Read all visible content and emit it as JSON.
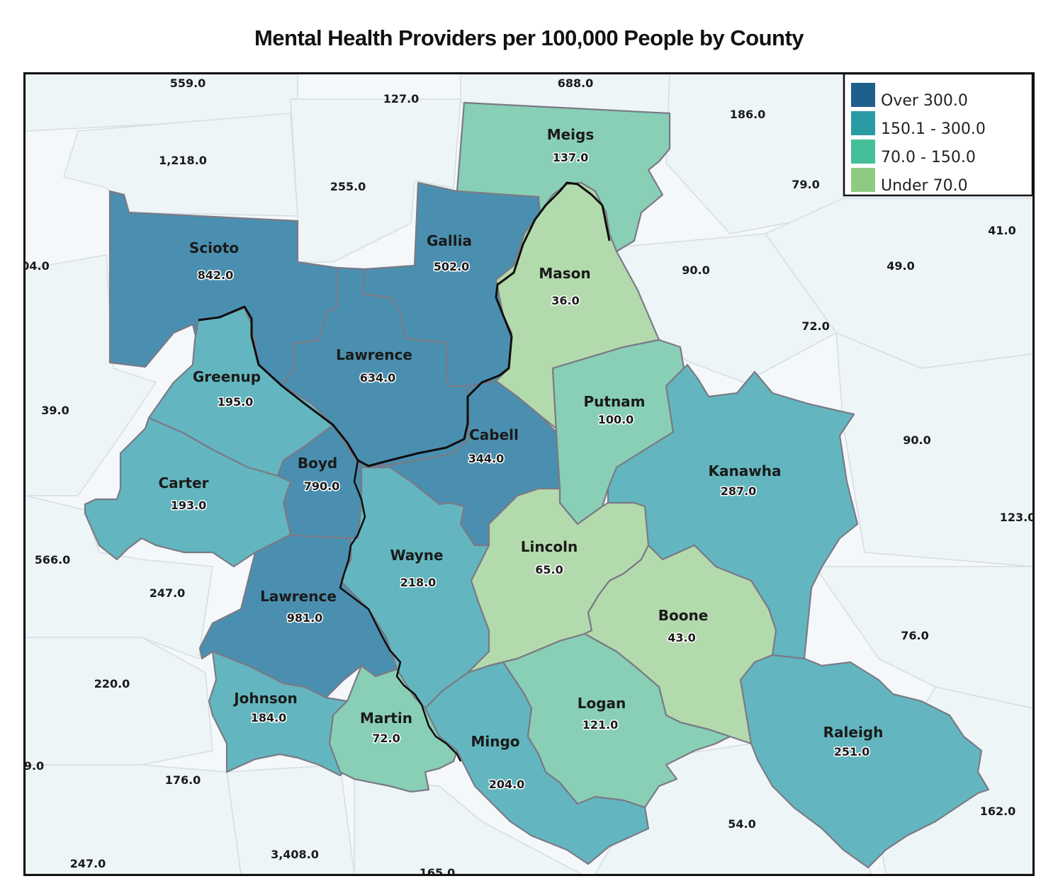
{
  "title": "Mental Health Providers per 100,000 People by County",
  "legend": {
    "items": [
      {
        "label": "Over 300.0",
        "color": "#1f5f8b"
      },
      {
        "label": "150.1 - 300.0",
        "color": "#2a9aa4"
      },
      {
        "label": "70.0 - 150.0",
        "color": "#45bf99"
      },
      {
        "label": "Under 70.0",
        "color": "#8ecb82"
      }
    ]
  },
  "fill_colors": {
    "over_300": "#4a8fb0",
    "c150_300": "#63b6bf",
    "c70_150": "#88cfb6",
    "under_70": "#b3daac"
  },
  "counties": [
    {
      "id": "meigs",
      "name": "Meigs",
      "value": "137.0",
      "class": "c70_150"
    },
    {
      "id": "scioto",
      "name": "Scioto",
      "value": "842.0",
      "class": "over_300"
    },
    {
      "id": "gallia",
      "name": "Gallia",
      "value": "502.0",
      "class": "over_300"
    },
    {
      "id": "mason",
      "name": "Mason",
      "value": "36.0",
      "class": "under_70"
    },
    {
      "id": "lawrence-oh",
      "name": "Lawrence",
      "value": "634.0",
      "class": "over_300"
    },
    {
      "id": "greenup",
      "name": "Greenup",
      "value": "195.0",
      "class": "c150_300"
    },
    {
      "id": "putnam",
      "name": "Putnam",
      "value": "100.0",
      "class": "c70_150"
    },
    {
      "id": "cabell",
      "name": "Cabell",
      "value": "344.0",
      "class": "over_300"
    },
    {
      "id": "boyd",
      "name": "Boyd",
      "value": "790.0",
      "class": "over_300"
    },
    {
      "id": "carter",
      "name": "Carter",
      "value": "193.0",
      "class": "c150_300"
    },
    {
      "id": "kanawha",
      "name": "Kanawha",
      "value": "287.0",
      "class": "c150_300"
    },
    {
      "id": "wayne",
      "name": "Wayne",
      "value": "218.0",
      "class": "c150_300"
    },
    {
      "id": "lincoln",
      "name": "Lincoln",
      "value": "65.0",
      "class": "under_70"
    },
    {
      "id": "lawrence-ky",
      "name": "Lawrence",
      "value": "981.0",
      "class": "over_300"
    },
    {
      "id": "boone",
      "name": "Boone",
      "value": "43.0",
      "class": "under_70"
    },
    {
      "id": "johnson",
      "name": "Johnson",
      "value": "184.0",
      "class": "c150_300"
    },
    {
      "id": "martin",
      "name": "Martin",
      "value": "72.0",
      "class": "c70_150"
    },
    {
      "id": "logan",
      "name": "Logan",
      "value": "121.0",
      "class": "c70_150"
    },
    {
      "id": "mingo",
      "name": "Mingo",
      "value": "204.0",
      "class": "c150_300"
    },
    {
      "id": "raleigh",
      "name": "Raleigh",
      "value": "251.0",
      "class": "c150_300"
    }
  ],
  "outside_values": [
    "559.0",
    "127.0",
    "688.0",
    "186.0",
    "1,218.0",
    "255.0",
    "79.0",
    "41.0",
    "04.0",
    "90.0",
    "49.0",
    "72.0",
    "39.0",
    "90.0",
    "123.0",
    "566.0",
    "247.0",
    "76.0",
    "220.0",
    "9.0",
    "176.0",
    "54.0",
    "162.0",
    "247.0",
    "3,408.0",
    "165.0"
  ]
}
